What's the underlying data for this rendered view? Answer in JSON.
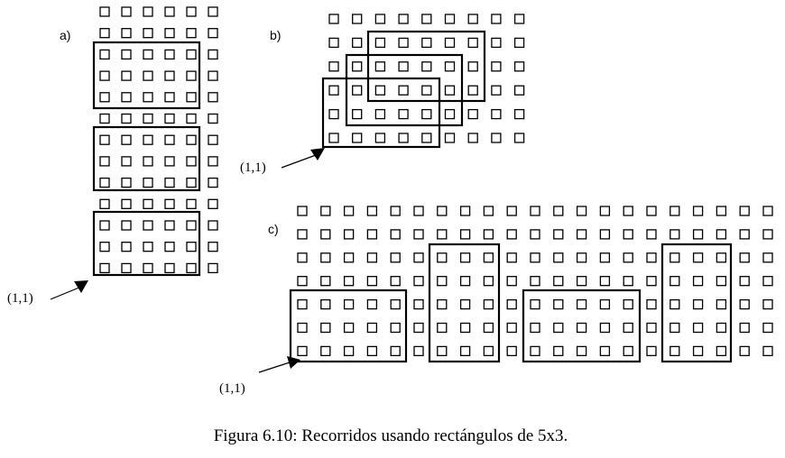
{
  "panels": {
    "a": {
      "label": "a)",
      "origin_label": "(1,1)"
    },
    "b": {
      "label": "b)",
      "origin_label": "(1,1)"
    },
    "c": {
      "label": "c)",
      "origin_label": "(1,1)"
    }
  },
  "caption": "Figura 6.10: Recorridos usando rectángulos de 5x3.",
  "colors": {
    "ink": "#000000",
    "paper": "#ffffff"
  }
}
